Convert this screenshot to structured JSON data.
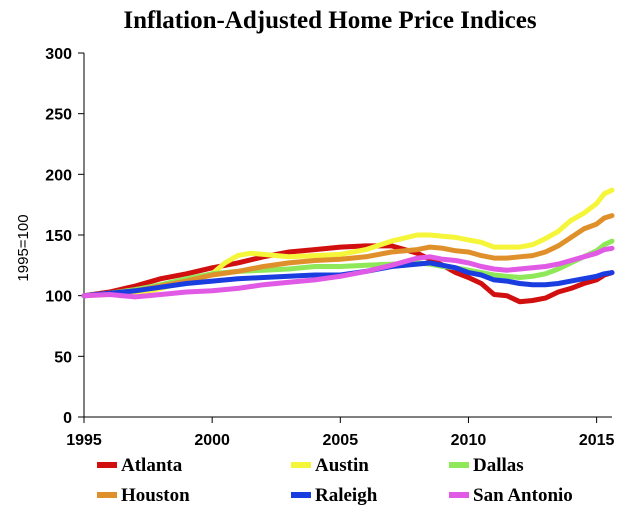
{
  "chart_data": {
    "type": "line",
    "title": "Inflation-Adjusted Home Price Indices",
    "ylabel": "1995=100",
    "xlabel": "",
    "xlim": [
      1995,
      2015.6
    ],
    "ylim": [
      0,
      300
    ],
    "xticks": [
      1995,
      2000,
      2005,
      2010,
      2015
    ],
    "yticks": [
      0,
      50,
      100,
      150,
      200,
      250,
      300
    ],
    "grid": false,
    "legend_position": "bottom",
    "series": [
      {
        "name": "Atlanta",
        "color": "#d10f0f",
        "points": [
          [
            1995,
            100
          ],
          [
            1996,
            103
          ],
          [
            1997,
            108
          ],
          [
            1998,
            114
          ],
          [
            1999,
            118
          ],
          [
            2000,
            123
          ],
          [
            2001,
            127
          ],
          [
            2002,
            132
          ],
          [
            2003,
            136
          ],
          [
            2004,
            138
          ],
          [
            2005,
            140
          ],
          [
            2006,
            141
          ],
          [
            2007,
            141
          ],
          [
            2008,
            135
          ],
          [
            2009,
            125
          ],
          [
            2009.5,
            119
          ],
          [
            2010,
            115
          ],
          [
            2010.5,
            110
          ],
          [
            2011,
            101
          ],
          [
            2011.5,
            100
          ],
          [
            2012,
            95
          ],
          [
            2012.5,
            96
          ],
          [
            2013,
            98
          ],
          [
            2013.5,
            103
          ],
          [
            2014,
            106
          ],
          [
            2014.5,
            110
          ],
          [
            2015,
            113
          ],
          [
            2015.3,
            117
          ],
          [
            2015.6,
            119
          ]
        ]
      },
      {
        "name": "Austin",
        "color": "#f5f53a",
        "points": [
          [
            1995,
            100
          ],
          [
            1996,
            101
          ],
          [
            1997,
            101
          ],
          [
            1998,
            106
          ],
          [
            1999,
            112
          ],
          [
            2000,
            118
          ],
          [
            2000.5,
            127
          ],
          [
            2001,
            133
          ],
          [
            2001.5,
            135
          ],
          [
            2002,
            134
          ],
          [
            2003,
            132
          ],
          [
            2004,
            133
          ],
          [
            2005,
            134
          ],
          [
            2006,
            138
          ],
          [
            2007,
            145
          ],
          [
            2008,
            150
          ],
          [
            2008.5,
            150
          ],
          [
            2009,
            149
          ],
          [
            2009.5,
            148
          ],
          [
            2010,
            146
          ],
          [
            2010.5,
            144
          ],
          [
            2011,
            140
          ],
          [
            2012,
            140
          ],
          [
            2012.5,
            142
          ],
          [
            2013,
            147
          ],
          [
            2013.5,
            153
          ],
          [
            2014,
            162
          ],
          [
            2014.5,
            168
          ],
          [
            2015,
            176
          ],
          [
            2015.3,
            184
          ],
          [
            2015.6,
            187
          ]
        ]
      },
      {
        "name": "Dallas",
        "color": "#8ee85a",
        "points": [
          [
            1995,
            100
          ],
          [
            1996,
            102
          ],
          [
            1997,
            105
          ],
          [
            1998,
            109
          ],
          [
            1999,
            114
          ],
          [
            2000,
            118
          ],
          [
            2001,
            120
          ],
          [
            2002,
            121
          ],
          [
            2003,
            122
          ],
          [
            2004,
            124
          ],
          [
            2005,
            124
          ],
          [
            2006,
            125
          ],
          [
            2007,
            126
          ],
          [
            2008,
            127
          ],
          [
            2008.5,
            126
          ],
          [
            2009,
            124
          ],
          [
            2009.5,
            123
          ],
          [
            2010,
            121
          ],
          [
            2010.5,
            119
          ],
          [
            2011,
            117
          ],
          [
            2011.5,
            116
          ],
          [
            2012,
            115
          ],
          [
            2012.5,
            116
          ],
          [
            2013,
            118
          ],
          [
            2013.5,
            122
          ],
          [
            2014,
            127
          ],
          [
            2014.5,
            132
          ],
          [
            2015,
            137
          ],
          [
            2015.3,
            142
          ],
          [
            2015.6,
            145
          ]
        ]
      },
      {
        "name": "Houston",
        "color": "#e0902a",
        "points": [
          [
            1995,
            100
          ],
          [
            1996,
            102
          ],
          [
            1997,
            104
          ],
          [
            1998,
            108
          ],
          [
            1999,
            112
          ],
          [
            2000,
            117
          ],
          [
            2001,
            120
          ],
          [
            2002,
            124
          ],
          [
            2003,
            127
          ],
          [
            2004,
            129
          ],
          [
            2005,
            130
          ],
          [
            2006,
            132
          ],
          [
            2007,
            136
          ],
          [
            2008,
            138
          ],
          [
            2008.5,
            140
          ],
          [
            2009,
            139
          ],
          [
            2009.5,
            137
          ],
          [
            2010,
            136
          ],
          [
            2010.5,
            133
          ],
          [
            2011,
            131
          ],
          [
            2011.5,
            131
          ],
          [
            2012,
            132
          ],
          [
            2012.5,
            133
          ],
          [
            2013,
            136
          ],
          [
            2013.5,
            141
          ],
          [
            2014,
            148
          ],
          [
            2014.5,
            155
          ],
          [
            2015,
            159
          ],
          [
            2015.3,
            164
          ],
          [
            2015.6,
            166
          ]
        ]
      },
      {
        "name": "Raleigh",
        "color": "#1a3de0",
        "points": [
          [
            1995,
            100
          ],
          [
            1996,
            102
          ],
          [
            1997,
            104
          ],
          [
            1998,
            107
          ],
          [
            1999,
            110
          ],
          [
            2000,
            112
          ],
          [
            2001,
            114
          ],
          [
            2002,
            115
          ],
          [
            2003,
            116
          ],
          [
            2004,
            117
          ],
          [
            2005,
            117
          ],
          [
            2006,
            120
          ],
          [
            2007,
            124
          ],
          [
            2008,
            126
          ],
          [
            2008.5,
            127
          ],
          [
            2009,
            125
          ],
          [
            2009.5,
            123
          ],
          [
            2010,
            119
          ],
          [
            2010.5,
            117
          ],
          [
            2011,
            113
          ],
          [
            2011.5,
            112
          ],
          [
            2012,
            110
          ],
          [
            2012.5,
            109
          ],
          [
            2013,
            109
          ],
          [
            2013.5,
            110
          ],
          [
            2014,
            112
          ],
          [
            2014.5,
            114
          ],
          [
            2015,
            116
          ],
          [
            2015.3,
            118
          ],
          [
            2015.6,
            119
          ]
        ]
      },
      {
        "name": "San Antonio",
        "color": "#e05ae6",
        "points": [
          [
            1995,
            100
          ],
          [
            1996,
            101
          ],
          [
            1997,
            99
          ],
          [
            1998,
            101
          ],
          [
            1999,
            103
          ],
          [
            2000,
            104
          ],
          [
            2001,
            106
          ],
          [
            2002,
            109
          ],
          [
            2003,
            111
          ],
          [
            2004,
            113
          ],
          [
            2005,
            116
          ],
          [
            2006,
            120
          ],
          [
            2007,
            125
          ],
          [
            2008,
            131
          ],
          [
            2008.5,
            132
          ],
          [
            2009,
            130
          ],
          [
            2009.5,
            129
          ],
          [
            2010,
            127
          ],
          [
            2010.5,
            124
          ],
          [
            2011,
            122
          ],
          [
            2011.5,
            121
          ],
          [
            2012,
            122
          ],
          [
            2012.5,
            123
          ],
          [
            2013,
            124
          ],
          [
            2013.5,
            126
          ],
          [
            2014,
            129
          ],
          [
            2014.5,
            132
          ],
          [
            2015,
            135
          ],
          [
            2015.3,
            138
          ],
          [
            2015.6,
            139
          ]
        ]
      }
    ]
  }
}
